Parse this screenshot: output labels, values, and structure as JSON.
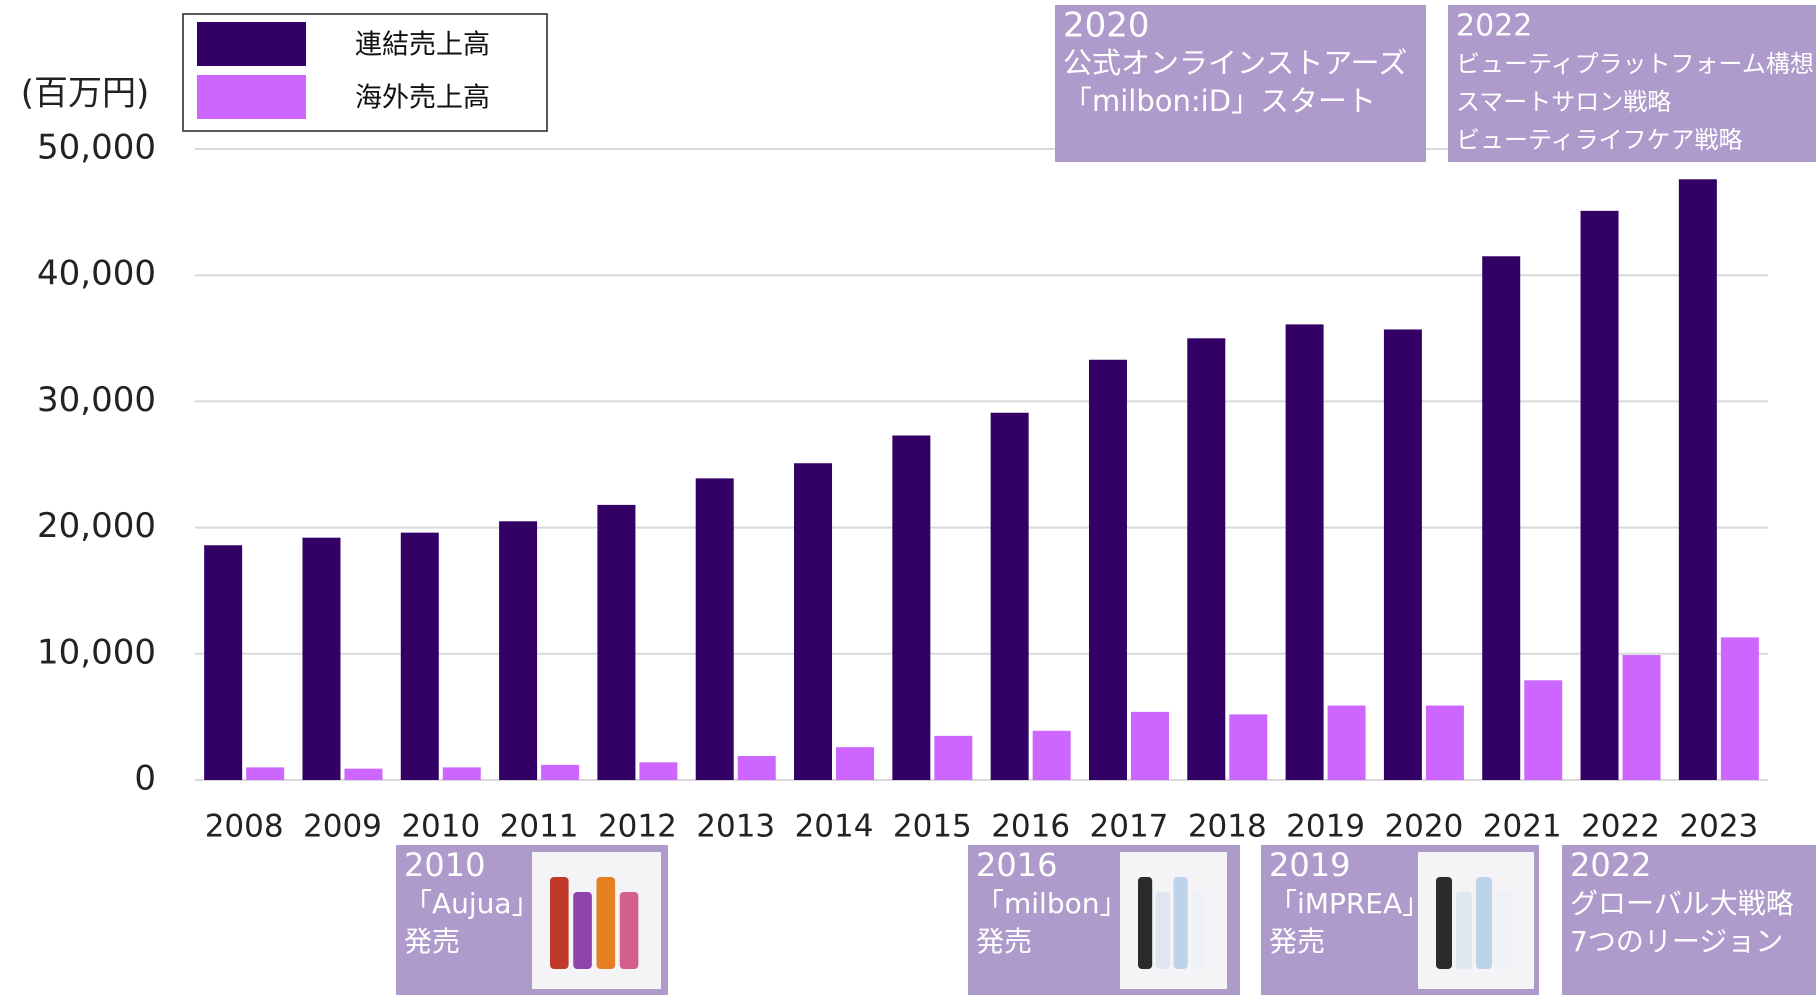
{
  "chart_data": {
    "type": "bar",
    "unit_label": "(百万円)",
    "categories": [
      "2008",
      "2009",
      "2010",
      "2011",
      "2012",
      "2013",
      "2014",
      "2015",
      "2016",
      "2017",
      "2018",
      "2019",
      "2020",
      "2021",
      "2022",
      "2023"
    ],
    "series": [
      {
        "name": "連結売上高",
        "color": "#330066",
        "values": [
          18600,
          19200,
          19600,
          20500,
          21800,
          23900,
          25100,
          27300,
          29100,
          33300,
          35000,
          36100,
          35700,
          41500,
          45100,
          47600
        ]
      },
      {
        "name": "海外売上高",
        "color": "#cc66ff",
        "values": [
          1000,
          900,
          1000,
          1200,
          1400,
          1900,
          2600,
          3500,
          3900,
          5400,
          5200,
          5900,
          5900,
          7900,
          9900,
          11300
        ]
      }
    ],
    "ylim": [
      0,
      50000
    ],
    "yticks": [
      0,
      {
        "value": 10000,
        "label": "10,000"
      },
      {
        "value": 20000,
        "label": "20,000"
      },
      {
        "value": 30000,
        "label": "30,000"
      },
      {
        "value": 40000,
        "label": "40,000"
      },
      {
        "value": 50000,
        "label": "50,000"
      }
    ],
    "grid": true,
    "annotations": [
      {
        "lines": [
          "2020",
          "公式オンラインストアーズ",
          "「milbon:iD」スタート"
        ]
      },
      {
        "lines": [
          "2022",
          "ビューティプラットフォーム構想",
          "スマートサロン戦略",
          "ビューティライフケア戦略"
        ]
      },
      {
        "lines": [
          "2010",
          "「Aujua」",
          "発売"
        ]
      },
      {
        "lines": [
          "2016",
          "「milbon」",
          "発売"
        ]
      },
      {
        "lines": [
          "2019",
          "「iMPREA」",
          "発売"
        ]
      },
      {
        "lines": [
          "2022",
          "グローバル大戦略",
          "7つのリージョン"
        ]
      }
    ]
  }
}
